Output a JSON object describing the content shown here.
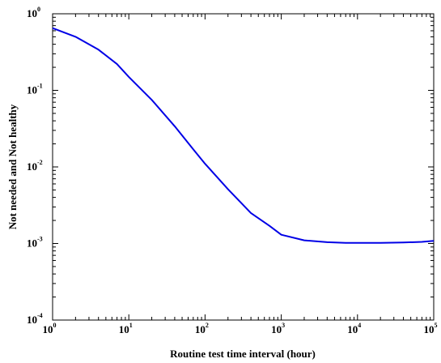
{
  "chart_data": {
    "type": "line",
    "title": "",
    "xlabel": "Routine test time interval (hour)",
    "ylabel": "Not needed and Not healthy",
    "x_scale": "log",
    "y_scale": "log",
    "xlim": [
      1,
      100000
    ],
    "ylim": [
      0.0001,
      1
    ],
    "grid": false,
    "legend": "none",
    "x_ticks": [
      {
        "base": "10",
        "exp": "0",
        "value": 1
      },
      {
        "base": "10",
        "exp": "1",
        "value": 10
      },
      {
        "base": "10",
        "exp": "2",
        "value": 100
      },
      {
        "base": "10",
        "exp": "3",
        "value": 1000
      },
      {
        "base": "10",
        "exp": "4",
        "value": 10000
      },
      {
        "base": "10",
        "exp": "5",
        "value": 100000
      }
    ],
    "y_ticks": [
      {
        "base": "10",
        "exp": "0",
        "value": 1
      },
      {
        "base": "10",
        "exp": "-1",
        "value": 0.1
      },
      {
        "base": "10",
        "exp": "-2",
        "value": 0.01
      },
      {
        "base": "10",
        "exp": "-3",
        "value": 0.001
      },
      {
        "base": "10",
        "exp": "-4",
        "value": 0.0001
      }
    ],
    "series": [
      {
        "color": "#0000e6",
        "x": [
          1,
          2,
          4,
          7,
          10,
          20,
          40,
          70,
          100,
          200,
          400,
          700,
          1000,
          2000,
          4000,
          7000,
          10000,
          20000,
          40000,
          70000,
          100000
        ],
        "y": [
          0.65,
          0.5,
          0.34,
          0.22,
          0.15,
          0.075,
          0.034,
          0.017,
          0.011,
          0.0051,
          0.0025,
          0.0017,
          0.0013,
          0.0011,
          0.00104,
          0.00102,
          0.00102,
          0.00102,
          0.00103,
          0.00105,
          0.00108
        ]
      }
    ]
  }
}
